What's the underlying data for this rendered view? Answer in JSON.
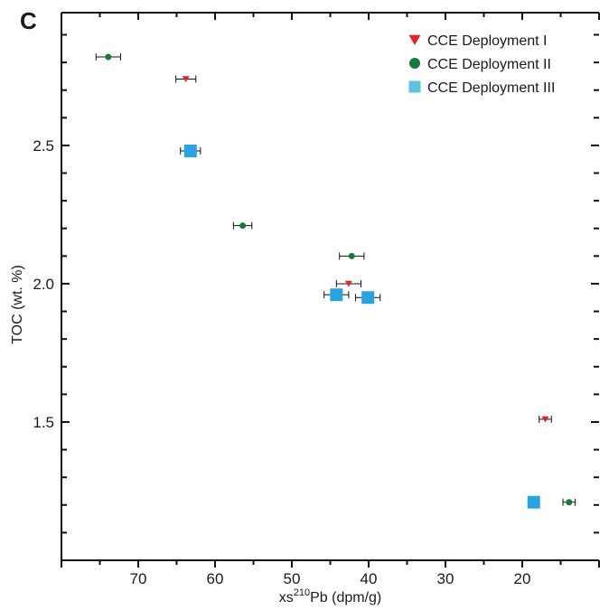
{
  "panel_label": "C",
  "chart_data": {
    "type": "scatter",
    "xlabel_prefix": "xs",
    "xlabel_sup": "210",
    "xlabel_suffix": "Pb (dpm/g)",
    "ylabel": "TOC (wt. %)",
    "xlim": [
      80,
      10
    ],
    "ylim": [
      1.0,
      2.98
    ],
    "x_ticks": [
      70,
      60,
      50,
      40,
      30,
      20
    ],
    "y_ticks": [
      1.5,
      2.0,
      2.5
    ],
    "x_tick_labels": [
      "70",
      "60",
      "50",
      "40",
      "30",
      "20"
    ],
    "y_tick_labels": [
      "1.5",
      "2.0",
      "2.5"
    ],
    "legend_position": "top-right",
    "series": [
      {
        "name": "CCE Deployment I",
        "marker": "triangle-down",
        "color": "#e8212a",
        "points": [
          {
            "x": 63.8,
            "y": 2.74,
            "xerr": 1.3
          },
          {
            "x": 42.6,
            "y": 2.0,
            "xerr": 1.6
          },
          {
            "x": 17.0,
            "y": 1.51,
            "xerr": 0.8
          }
        ]
      },
      {
        "name": "CCE Deployment II",
        "marker": "circle",
        "color": "#157a3a",
        "points": [
          {
            "x": 73.9,
            "y": 2.82,
            "xerr": 1.6
          },
          {
            "x": 56.4,
            "y": 2.21,
            "xerr": 1.2
          },
          {
            "x": 42.2,
            "y": 2.1,
            "xerr": 1.6
          },
          {
            "x": 13.9,
            "y": 1.21,
            "xerr": 0.8
          }
        ]
      },
      {
        "name": "CCE Deployment III",
        "marker": "square",
        "color": "#2aa4e0",
        "points": [
          {
            "x": 63.2,
            "y": 2.48,
            "xerr": 1.3
          },
          {
            "x": 44.2,
            "y": 1.96,
            "xerr": 1.6
          },
          {
            "x": 40.1,
            "y": 1.95,
            "xerr": 1.6
          },
          {
            "x": 18.5,
            "y": 1.21,
            "xerr": 0
          }
        ]
      }
    ]
  }
}
